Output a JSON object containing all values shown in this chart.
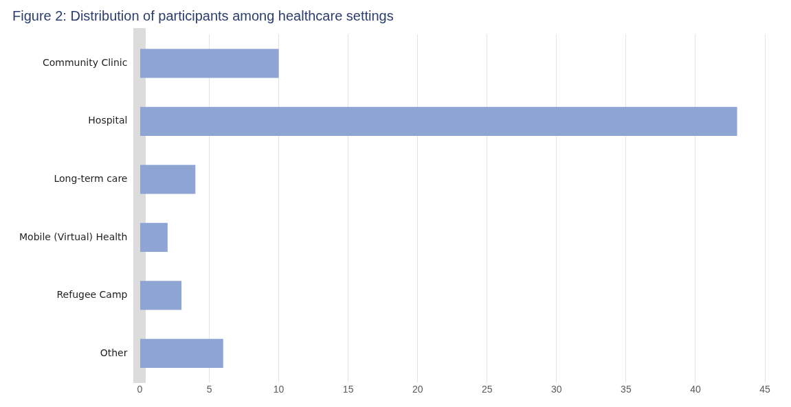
{
  "chart_data": {
    "type": "bar",
    "orientation": "horizontal",
    "title": "Figure 2: Distribution of participants among healthcare settings",
    "categories": [
      "Community Clinic",
      "Hospital",
      "Long-term care",
      "Mobile (Virtual) Health",
      "Refugee Camp",
      "Other"
    ],
    "values": [
      10,
      43,
      4,
      2,
      3,
      6
    ],
    "color": "#8ea5d4",
    "xlim": [
      0,
      45
    ],
    "xticks": [
      0,
      5,
      10,
      15,
      20,
      25,
      30,
      35,
      40,
      45
    ],
    "grid": "x",
    "legend": false
  }
}
